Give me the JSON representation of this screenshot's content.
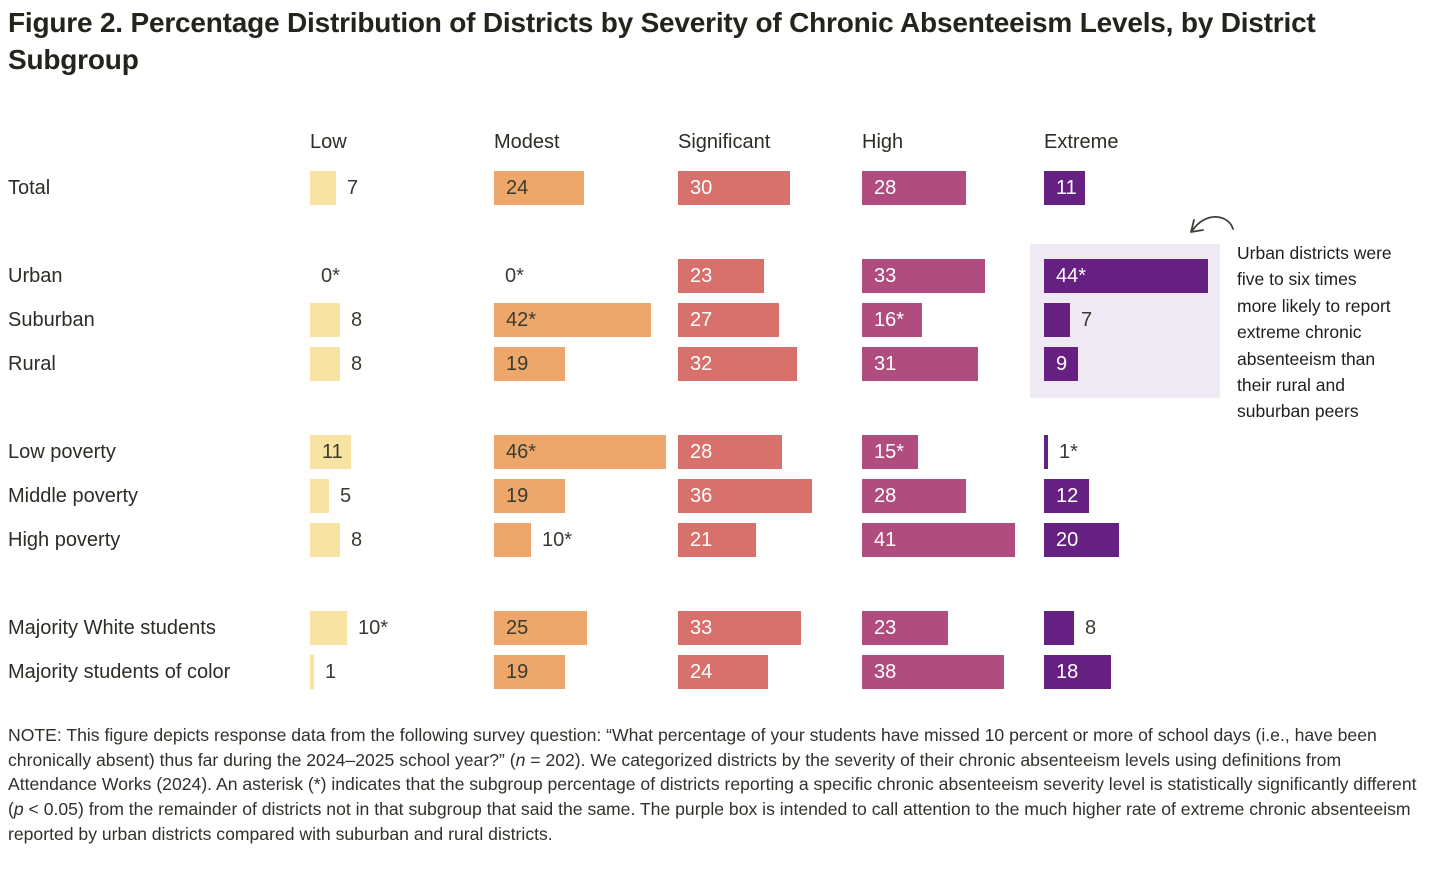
{
  "title": {
    "label": "Figure 2.",
    "text": " Percentage Distribution of Districts by Severity of Chronic Absenteeism Levels, by District Subgroup"
  },
  "chart_data": {
    "type": "bar",
    "orientation": "horizontal",
    "unit": "percent of districts",
    "xlim": [
      0,
      50
    ],
    "grid": false,
    "legend_position": "column-headers-top",
    "categories": [
      "Low",
      "Modest",
      "Significant",
      "High",
      "Extreme"
    ],
    "category_colors": [
      "#F7E3A2",
      "#EDA76B",
      "#D8716C",
      "#B14C7F",
      "#652082"
    ],
    "rows": [
      {
        "label": "Total",
        "group": 0,
        "values": [
          7,
          24,
          30,
          28,
          11
        ],
        "labels": [
          "7",
          "24",
          "30",
          "28",
          "11"
        ],
        "inside": [
          false,
          true,
          true,
          true,
          true
        ]
      },
      {
        "label": "Urban",
        "group": 1,
        "values": [
          0,
          0,
          23,
          33,
          44
        ],
        "labels": [
          "0*",
          "0*",
          "23",
          "33",
          "44*"
        ],
        "inside": [
          false,
          false,
          true,
          true,
          true
        ]
      },
      {
        "label": "Suburban",
        "group": 1,
        "values": [
          8,
          42,
          27,
          16,
          7
        ],
        "labels": [
          "8",
          "42*",
          "27",
          "16*",
          "7"
        ],
        "inside": [
          false,
          true,
          true,
          true,
          false
        ]
      },
      {
        "label": "Rural",
        "group": 1,
        "values": [
          8,
          19,
          32,
          31,
          9
        ],
        "labels": [
          "8",
          "19",
          "32",
          "31",
          "9"
        ],
        "inside": [
          false,
          true,
          true,
          true,
          true
        ]
      },
      {
        "label": "Low poverty",
        "group": 2,
        "values": [
          11,
          46,
          28,
          15,
          1
        ],
        "labels": [
          "11",
          "46*",
          "28",
          "15*",
          "1*"
        ],
        "inside": [
          true,
          true,
          true,
          true,
          false
        ]
      },
      {
        "label": "Middle poverty",
        "group": 2,
        "values": [
          5,
          19,
          36,
          28,
          12
        ],
        "labels": [
          "5",
          "19",
          "36",
          "28",
          "12"
        ],
        "inside": [
          false,
          true,
          true,
          true,
          true
        ]
      },
      {
        "label": "High poverty",
        "group": 2,
        "values": [
          8,
          10,
          21,
          41,
          20
        ],
        "labels": [
          "8",
          "10*",
          "21",
          "41",
          "20"
        ],
        "inside": [
          false,
          false,
          true,
          true,
          true
        ]
      },
      {
        "label": "Majority White students",
        "group": 3,
        "values": [
          10,
          25,
          33,
          23,
          8
        ],
        "labels": [
          "10*",
          "25",
          "33",
          "23",
          "8"
        ],
        "inside": [
          false,
          true,
          true,
          true,
          false
        ]
      },
      {
        "label": "Majority students of color",
        "group": 3,
        "values": [
          1,
          19,
          24,
          38,
          18
        ],
        "labels": [
          "1",
          "19",
          "24",
          "38",
          "18"
        ],
        "inside": [
          false,
          true,
          true,
          true,
          true
        ]
      }
    ],
    "highlight": {
      "description": "purple box around Extreme column bars for Urban, Suburban, Rural rows",
      "color": "#EFE9F4"
    }
  },
  "annotation": {
    "text": "Urban districts were\nfive to six times\nmore likely to report\nextreme chronic\nabsenteeism than\ntheir rural and\nsuburban peers"
  },
  "note": {
    "segments": [
      {
        "t": "NOTE: This figure depicts response data from the following survey question: “What percentage of your students have missed 10 percent or more of school days (i.e., have been chronically absent) thus far during the 2024–2025 school year?” (",
        "i": false
      },
      {
        "t": "n",
        "i": true
      },
      {
        "t": " = 202). We categorized districts by the severity of their chronic absenteeism levels using definitions from Attendance Works (2024). An asterisk (*) indicates that the subgroup percentage of districts reporting a specific chronic absenteeism severity level is statistically significantly different (",
        "i": false
      },
      {
        "t": "p",
        "i": true
      },
      {
        "t": " < 0.05) from the remainder of districts not in that subgroup that said the same. The purple box is intended to call attention to the much higher rate of extreme chronic absenteeism reported by urban districts compared with suburban and rural districts.",
        "i": false
      }
    ]
  },
  "colors": {
    "title_text": "#21251b",
    "body_text": "#2c2d26",
    "dark_bar_label": "#3a3b30",
    "light_bar_label": "#ffffff",
    "highlight_box": "#EFE9F4",
    "arrow": "#3f4038"
  }
}
